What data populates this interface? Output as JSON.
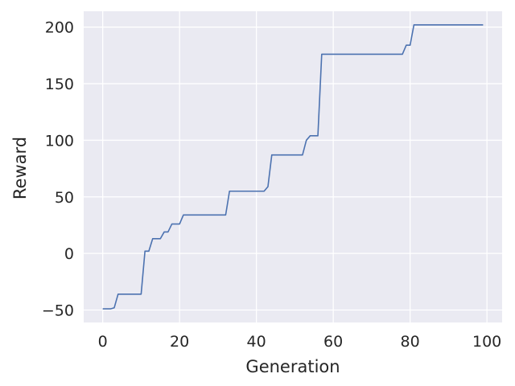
{
  "chart_data": {
    "type": "line",
    "title": "",
    "xlabel": "Generation",
    "ylabel": "Reward",
    "xlim": [
      -4.95,
      103.95
    ],
    "ylim": [
      -61,
      214
    ],
    "xticks": [
      0,
      20,
      40,
      60,
      80,
      100
    ],
    "yticks": [
      -50,
      0,
      50,
      100,
      150,
      200
    ],
    "grid": true,
    "colors": {
      "background": "#EAEAF2",
      "grid": "#FFFFFF",
      "line": "#4C72B0",
      "text": "#262626"
    },
    "series": [
      {
        "name": "",
        "x": [
          0,
          1,
          2,
          3,
          4,
          5,
          6,
          7,
          8,
          9,
          10,
          11,
          12,
          13,
          14,
          15,
          16,
          17,
          18,
          19,
          20,
          21,
          22,
          23,
          24,
          25,
          26,
          27,
          28,
          29,
          30,
          31,
          32,
          33,
          34,
          35,
          36,
          37,
          38,
          39,
          40,
          41,
          42,
          43,
          44,
          45,
          46,
          47,
          48,
          49,
          50,
          51,
          52,
          53,
          54,
          55,
          56,
          57,
          58,
          59,
          60,
          61,
          62,
          63,
          64,
          65,
          66,
          67,
          68,
          69,
          70,
          71,
          72,
          73,
          74,
          75,
          76,
          77,
          78,
          79,
          80,
          81,
          82,
          83,
          84,
          85,
          86,
          87,
          88,
          89,
          90,
          91,
          92,
          93,
          94,
          95,
          96,
          97,
          98,
          99
        ],
        "y": [
          -49,
          -49,
          -49,
          -48,
          -36,
          -36,
          -36,
          -36,
          -36,
          -36,
          -36,
          2,
          2,
          13,
          13,
          13,
          19,
          19,
          26,
          26,
          26,
          34,
          34,
          34,
          34,
          34,
          34,
          34,
          34,
          34,
          34,
          34,
          34,
          55,
          55,
          55,
          55,
          55,
          55,
          55,
          55,
          55,
          55,
          59,
          87,
          87,
          87,
          87,
          87,
          87,
          87,
          87,
          87,
          100,
          104,
          104,
          104,
          176,
          176,
          176,
          176,
          176,
          176,
          176,
          176,
          176,
          176,
          176,
          176,
          176,
          176,
          176,
          176,
          176,
          176,
          176,
          176,
          176,
          176,
          184,
          184,
          202,
          202,
          202,
          202,
          202,
          202,
          202,
          202,
          202,
          202,
          202,
          202,
          202,
          202,
          202,
          202,
          202,
          202,
          202
        ]
      }
    ]
  }
}
